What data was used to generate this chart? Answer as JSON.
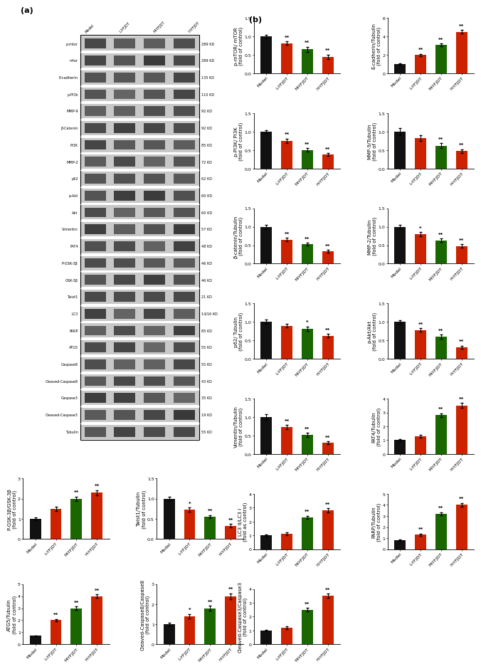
{
  "wb_labels_left": [
    "p-mtor",
    "mtor",
    "E-cadherin",
    "p-PI3k",
    "MMP-9",
    "β-Catenin",
    "PI3K",
    "MMP-2",
    "p62",
    "p-Akt",
    "Akt",
    "Vimentin",
    "FAT4",
    "P-GSK-3β",
    "GSK-3β",
    "Twist1",
    "LC3",
    "PARP",
    "ATG5",
    "Caspase8",
    "Cleaved-Caspase8",
    "Caspase3",
    "Cleaved-Caspase3",
    "Tubulin"
  ],
  "wb_labels_right": [
    "289 KD",
    "289 KD",
    "135 KD",
    "110 KD",
    "92 KD",
    "92 KD",
    "85 KD",
    "72 KD",
    "62 KD",
    "60 KD",
    "60 KD",
    "57 KD",
    "48 KD",
    "46 KD",
    "46 KD",
    "21 KD",
    "14/16 KD",
    "85 KD",
    "55 KD",
    "55 KD",
    "43 KD",
    "35 KD",
    "19 KD",
    "55 KD"
  ],
  "col_headers": [
    "Model",
    "L-YFJDT",
    "M-YFJDT",
    "H-YFJDT"
  ],
  "bar_colors": [
    "#111111",
    "#cc2200",
    "#1a6600",
    "#cc2200"
  ],
  "charts": [
    {
      "ylabel": "p-mTOR/ mTOR\n(fold of control)",
      "ylim": [
        0,
        1.5
      ],
      "yticks": [
        0.0,
        0.5,
        1.0,
        1.5
      ],
      "values": [
        1.0,
        0.82,
        0.65,
        0.45
      ],
      "errors": [
        0.05,
        0.05,
        0.07,
        0.06
      ],
      "sig": [
        "",
        "**",
        "**",
        "**"
      ]
    },
    {
      "ylabel": "E-cadherin/Tubulin\n(fold of control)",
      "ylim": [
        0,
        6
      ],
      "yticks": [
        0,
        2,
        4,
        6
      ],
      "values": [
        1.0,
        2.0,
        3.1,
        4.5
      ],
      "errors": [
        0.08,
        0.12,
        0.15,
        0.18
      ],
      "sig": [
        "",
        "**",
        "**",
        "**"
      ]
    },
    {
      "ylabel": "p-PI3K/ PI3K\n(fold of control)",
      "ylim": [
        0,
        1.5
      ],
      "yticks": [
        0.0,
        0.5,
        1.0,
        1.5
      ],
      "values": [
        1.0,
        0.75,
        0.5,
        0.38
      ],
      "errors": [
        0.04,
        0.06,
        0.05,
        0.04
      ],
      "sig": [
        "",
        "**",
        "**",
        "**"
      ]
    },
    {
      "ylabel": "MMP-9/Tubulin\n(fold of control)",
      "ylim": [
        0,
        1.5
      ],
      "yticks": [
        0.0,
        0.5,
        1.0,
        1.5
      ],
      "values": [
        1.0,
        0.82,
        0.62,
        0.47
      ],
      "errors": [
        0.1,
        0.08,
        0.06,
        0.05
      ],
      "sig": [
        "",
        "",
        "**",
        "**"
      ]
    },
    {
      "ylabel": "β-catenin/Tubulin\n(fold of control)",
      "ylim": [
        0,
        1.5
      ],
      "yticks": [
        0.0,
        0.5,
        1.0,
        1.5
      ],
      "values": [
        1.0,
        0.65,
        0.53,
        0.33
      ],
      "errors": [
        0.06,
        0.05,
        0.04,
        0.04
      ],
      "sig": [
        "",
        "**",
        "**",
        "**"
      ]
    },
    {
      "ylabel": "MMP-2/Tubulin\n(fold of control)",
      "ylim": [
        0,
        1.5
      ],
      "yticks": [
        0.0,
        0.5,
        1.0,
        1.5
      ],
      "values": [
        1.0,
        0.8,
        0.63,
        0.48
      ],
      "errors": [
        0.05,
        0.06,
        0.05,
        0.04
      ],
      "sig": [
        "",
        "*",
        "**",
        "**"
      ]
    },
    {
      "ylabel": "p62/ Tubulin\n(fold of control)",
      "ylim": [
        0,
        1.5
      ],
      "yticks": [
        0.0,
        0.5,
        1.0,
        1.5
      ],
      "values": [
        1.0,
        0.9,
        0.82,
        0.63
      ],
      "errors": [
        0.06,
        0.05,
        0.06,
        0.05
      ],
      "sig": [
        "",
        "",
        "*",
        "**"
      ]
    },
    {
      "ylabel": "p-Akt/Akt\n(fold of control)",
      "ylim": [
        0,
        1.5
      ],
      "yticks": [
        0.0,
        0.5,
        1.0,
        1.5
      ],
      "values": [
        1.0,
        0.78,
        0.6,
        0.32
      ],
      "errors": [
        0.05,
        0.05,
        0.05,
        0.04
      ],
      "sig": [
        "",
        "**",
        "**",
        "**"
      ]
    },
    {
      "ylabel": "Vimentin/Tubulin\n(fold of control)",
      "ylim": [
        0,
        1.5
      ],
      "yticks": [
        0.0,
        0.5,
        1.0,
        1.5
      ],
      "values": [
        1.0,
        0.73,
        0.52,
        0.3
      ],
      "errors": [
        0.08,
        0.06,
        0.05,
        0.04
      ],
      "sig": [
        "",
        "**",
        "**",
        "**"
      ]
    },
    {
      "ylabel": "FAT4/Tubulin\n(fold of control)",
      "ylim": [
        0,
        4
      ],
      "yticks": [
        0,
        1,
        2,
        3,
        4
      ],
      "values": [
        1.0,
        1.3,
        2.8,
        3.5
      ],
      "errors": [
        0.08,
        0.1,
        0.15,
        0.18
      ],
      "sig": [
        "",
        "",
        "**",
        "**"
      ]
    },
    {
      "ylabel": "P-GSK-3β/GSK-3β\n(fold of control)",
      "ylim": [
        0,
        3
      ],
      "yticks": [
        0,
        1,
        2,
        3
      ],
      "values": [
        1.0,
        1.5,
        2.0,
        2.3
      ],
      "errors": [
        0.06,
        0.1,
        0.1,
        0.12
      ],
      "sig": [
        "",
        "",
        "**",
        "**"
      ]
    },
    {
      "ylabel": "Twist1/Tubulin\n(fold of control)",
      "ylim": [
        0,
        1.5
      ],
      "yticks": [
        0.0,
        0.5,
        1.0,
        1.5
      ],
      "values": [
        1.0,
        0.73,
        0.55,
        0.33
      ],
      "errors": [
        0.04,
        0.05,
        0.04,
        0.04
      ],
      "sig": [
        "",
        "*",
        "**",
        "**"
      ]
    },
    {
      "ylabel": "LC3 II/LC3 I\n(fold as control)",
      "ylim": [
        0,
        4
      ],
      "yticks": [
        0,
        1,
        2,
        3,
        4
      ],
      "values": [
        1.0,
        1.1,
        2.3,
        2.8
      ],
      "errors": [
        0.08,
        0.1,
        0.12,
        0.15
      ],
      "sig": [
        "",
        "",
        "**",
        "**"
      ]
    },
    {
      "ylabel": "PARP/Tubulin\n(fold of control)",
      "ylim": [
        0,
        5
      ],
      "yticks": [
        0,
        1,
        2,
        3,
        4,
        5
      ],
      "values": [
        0.8,
        1.3,
        3.2,
        4.0
      ],
      "errors": [
        0.06,
        0.1,
        0.15,
        0.18
      ],
      "sig": [
        "",
        "**",
        "**",
        "**"
      ]
    },
    {
      "ylabel": "ATG5/Tubulin\n(fold of control)",
      "ylim": [
        0,
        5
      ],
      "yticks": [
        0,
        1,
        2,
        3,
        4,
        5
      ],
      "values": [
        0.7,
        2.0,
        3.0,
        4.0
      ],
      "errors": [
        0.05,
        0.1,
        0.12,
        0.14
      ],
      "sig": [
        "",
        "**",
        "**",
        "**"
      ]
    },
    {
      "ylabel": "Cleaved-Caspase8/Caspase8\n(fold of control)",
      "ylim": [
        0,
        3
      ],
      "yticks": [
        0,
        1,
        2,
        3
      ],
      "values": [
        1.0,
        1.4,
        1.8,
        2.4
      ],
      "errors": [
        0.06,
        0.1,
        0.12,
        0.14
      ],
      "sig": [
        "",
        "*",
        "**",
        "**"
      ]
    },
    {
      "ylabel": "Cleaved-Caspase3/Caspase3\n(fold of control)",
      "ylim": [
        0,
        4
      ],
      "yticks": [
        0,
        1,
        2,
        3,
        4
      ],
      "values": [
        1.0,
        1.2,
        2.5,
        3.5
      ],
      "errors": [
        0.06,
        0.08,
        0.12,
        0.15
      ],
      "sig": [
        "",
        "",
        "**",
        "**"
      ]
    }
  ]
}
